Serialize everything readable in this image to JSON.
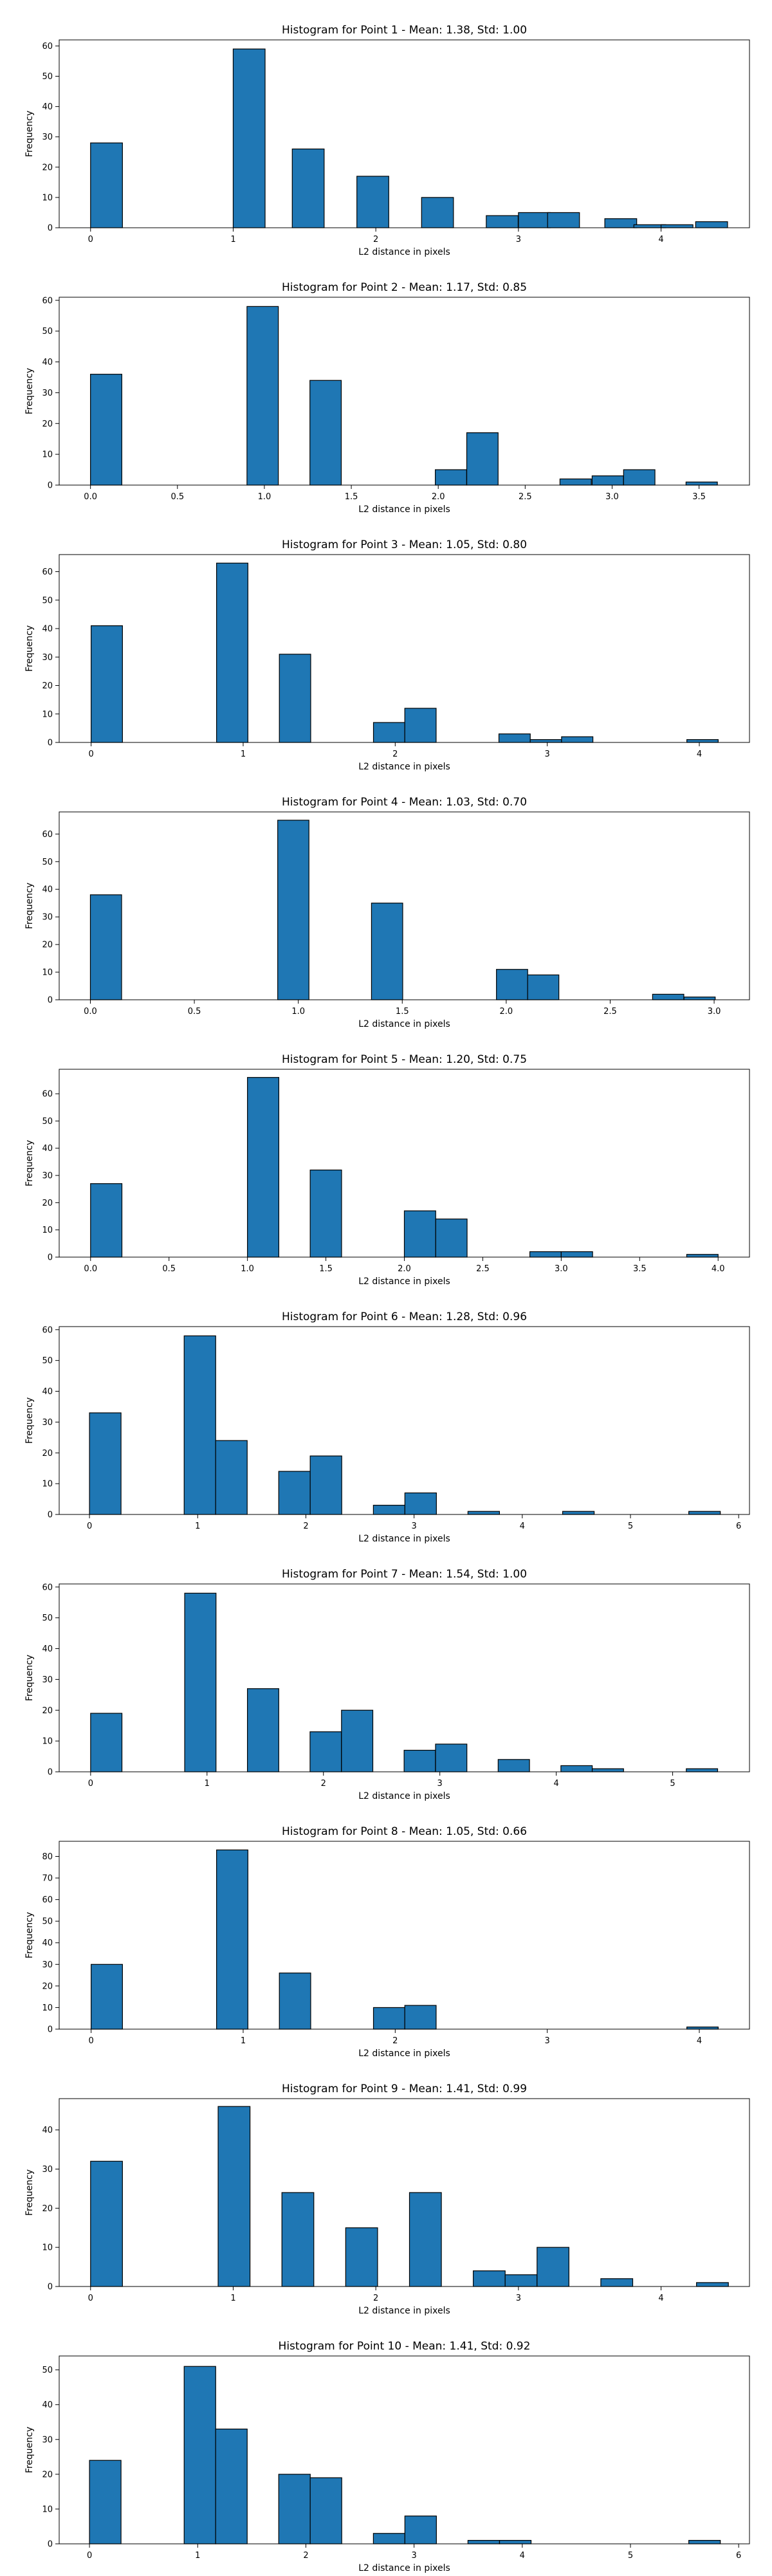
{
  "figure": {
    "bar_color": "#1f77b4",
    "edge_color": "#000000",
    "xlabel": "L2 distance in pixels",
    "ylabel": "Frequency"
  },
  "chart_data": [
    {
      "type": "bar",
      "title": "Histogram for Point 1 - Mean: 1.38, Std: 1.00",
      "xlabel": "L2 distance in pixels",
      "ylabel": "Frequency",
      "xlim": [
        -0.22,
        4.62
      ],
      "ylim": [
        0,
        62
      ],
      "xticks": [
        0,
        1,
        2,
        3,
        4
      ],
      "xtick_labels": [
        "0",
        "1",
        "2",
        "3",
        "4"
      ],
      "yticks": [
        0,
        10,
        20,
        30,
        40,
        50,
        60
      ],
      "bin_width": 0.2236,
      "bins": [
        [
          0.0,
          28
        ],
        [
          1.0,
          59
        ],
        [
          1.4142,
          26
        ],
        [
          1.8672,
          17
        ],
        [
          2.3208,
          10
        ],
        [
          2.7744,
          4
        ],
        [
          3.0,
          5
        ],
        [
          3.2044,
          5
        ],
        [
          3.6056,
          3
        ],
        [
          3.8094,
          1
        ],
        [
          4.0,
          1
        ],
        [
          4.2426,
          2
        ]
      ]
    },
    {
      "type": "bar",
      "title": "Histogram for Point 2 - Mean: 1.17, Std: 0.85",
      "xlabel": "L2 distance in pixels",
      "ylabel": "Frequency",
      "xlim": [
        -0.18,
        3.79
      ],
      "ylim": [
        0,
        61
      ],
      "xticks": [
        0.0,
        0.5,
        1.0,
        1.5,
        2.0,
        2.5,
        3.0,
        3.5
      ],
      "xtick_labels": [
        "0.0",
        "0.5",
        "1.0",
        "1.5",
        "2.0",
        "2.5",
        "3.0",
        "3.5"
      ],
      "yticks": [
        0,
        10,
        20,
        30,
        40,
        50,
        60
      ],
      "bin_width": 0.1803,
      "bins": [
        [
          0.0,
          36
        ],
        [
          0.9,
          58
        ],
        [
          1.262,
          34
        ],
        [
          1.983,
          5
        ],
        [
          2.164,
          17
        ],
        [
          2.7,
          2
        ],
        [
          2.885,
          3
        ],
        [
          3.066,
          5
        ],
        [
          3.425,
          1
        ]
      ]
    },
    {
      "type": "bar",
      "title": "Histogram for Point 3 - Mean: 1.05, Std: 0.80",
      "xlabel": "L2 distance in pixels",
      "ylabel": "Frequency",
      "xlim": [
        -0.21,
        4.33
      ],
      "ylim": [
        0,
        66
      ],
      "xticks": [
        0,
        1,
        2,
        3,
        4
      ],
      "xtick_labels": [
        "0",
        "1",
        "2",
        "3",
        "4"
      ],
      "yticks": [
        0,
        10,
        20,
        30,
        40,
        50,
        60
      ],
      "bin_width": 0.2062,
      "bins": [
        [
          0.0,
          41
        ],
        [
          0.825,
          63
        ],
        [
          1.238,
          31
        ],
        [
          1.857,
          7
        ],
        [
          2.063,
          12
        ],
        [
          2.682,
          3
        ],
        [
          2.888,
          1
        ],
        [
          3.094,
          2
        ],
        [
          3.918,
          1
        ]
      ]
    },
    {
      "type": "bar",
      "title": "Histogram for Point 4 - Mean: 1.03, Std: 0.70",
      "xlabel": "L2 distance in pixels",
      "ylabel": "Frequency",
      "xlim": [
        -0.15,
        3.17
      ],
      "ylim": [
        0,
        68
      ],
      "xticks": [
        0.0,
        0.5,
        1.0,
        1.5,
        2.0,
        2.5,
        3.0
      ],
      "xtick_labels": [
        "0.0",
        "0.5",
        "1.0",
        "1.5",
        "2.0",
        "2.5",
        "3.0"
      ],
      "yticks": [
        0,
        10,
        20,
        30,
        40,
        50,
        60
      ],
      "bin_width": 0.1502,
      "bins": [
        [
          0.0,
          38
        ],
        [
          0.901,
          65
        ],
        [
          1.352,
          35
        ],
        [
          1.953,
          11
        ],
        [
          2.103,
          9
        ],
        [
          2.704,
          2
        ],
        [
          2.855,
          1
        ]
      ]
    },
    {
      "type": "bar",
      "title": "Histogram for Point 5 - Mean: 1.20, Std: 0.75",
      "xlabel": "L2 distance in pixels",
      "ylabel": "Frequency",
      "xlim": [
        -0.2,
        4.2
      ],
      "ylim": [
        0,
        69
      ],
      "xticks": [
        0.0,
        0.5,
        1.0,
        1.5,
        2.0,
        2.5,
        3.0,
        3.5,
        4.0
      ],
      "xtick_labels": [
        "0.0",
        "0.5",
        "1.0",
        "1.5",
        "2.0",
        "2.5",
        "3.0",
        "3.5",
        "4.0"
      ],
      "yticks": [
        0,
        10,
        20,
        30,
        40,
        50,
        60
      ],
      "bin_width": 0.2,
      "bins": [
        [
          0.0,
          27
        ],
        [
          1.0,
          66
        ],
        [
          1.4,
          32
        ],
        [
          2.0,
          17
        ],
        [
          2.2,
          14
        ],
        [
          2.8,
          2
        ],
        [
          3.0,
          2
        ],
        [
          3.8,
          1
        ]
      ]
    },
    {
      "type": "bar",
      "title": "Histogram for Point 6 - Mean: 1.28, Std: 0.96",
      "xlabel": "L2 distance in pixels",
      "ylabel": "Frequency",
      "xlim": [
        -0.28,
        6.1
      ],
      "ylim": [
        0,
        61
      ],
      "xticks": [
        0,
        1,
        2,
        3,
        4,
        5,
        6
      ],
      "xtick_labels": [
        "0",
        "1",
        "2",
        "3",
        "4",
        "5",
        "6"
      ],
      "yticks": [
        0,
        10,
        20,
        30,
        40,
        50,
        60
      ],
      "bin_width": 0.2915,
      "bins": [
        [
          0.0,
          33
        ],
        [
          0.875,
          58
        ],
        [
          1.166,
          24
        ],
        [
          1.749,
          14
        ],
        [
          2.04,
          19
        ],
        [
          2.624,
          3
        ],
        [
          2.915,
          7
        ],
        [
          3.498,
          1
        ],
        [
          4.373,
          1
        ],
        [
          5.539,
          1
        ]
      ]
    },
    {
      "type": "bar",
      "title": "Histogram for Point 7 - Mean: 1.54, Std: 1.00",
      "xlabel": "L2 distance in pixels",
      "ylabel": "Frequency",
      "xlim": [
        -0.27,
        5.66
      ],
      "ylim": [
        0,
        61
      ],
      "xticks": [
        0,
        1,
        2,
        3,
        4,
        5
      ],
      "xtick_labels": [
        "0",
        "1",
        "2",
        "3",
        "4",
        "5"
      ],
      "yticks": [
        0,
        10,
        20,
        30,
        40,
        50,
        60
      ],
      "bin_width": 0.2693,
      "bins": [
        [
          0.0,
          19
        ],
        [
          0.808,
          58
        ],
        [
          1.347,
          27
        ],
        [
          1.885,
          13
        ],
        [
          2.155,
          20
        ],
        [
          2.693,
          7
        ],
        [
          2.963,
          9
        ],
        [
          3.501,
          4
        ],
        [
          4.04,
          2
        ],
        [
          4.309,
          1
        ],
        [
          5.117,
          1
        ]
      ]
    },
    {
      "type": "bar",
      "title": "Histogram for Point 8 - Mean: 1.05, Std: 0.66",
      "xlabel": "L2 distance in pixels",
      "ylabel": "Frequency",
      "xlim": [
        -0.21,
        4.33
      ],
      "ylim": [
        0,
        87
      ],
      "xticks": [
        0,
        1,
        2,
        3,
        4
      ],
      "xtick_labels": [
        "0",
        "1",
        "2",
        "3",
        "4"
      ],
      "yticks": [
        0,
        10,
        20,
        30,
        40,
        50,
        60,
        70,
        80
      ],
      "bin_width": 0.2062,
      "bins": [
        [
          0.0,
          30
        ],
        [
          0.825,
          83
        ],
        [
          1.238,
          26
        ],
        [
          1.857,
          10
        ],
        [
          2.063,
          11
        ],
        [
          3.918,
          1
        ]
      ]
    },
    {
      "type": "bar",
      "title": "Histogram for Point 9 - Mean: 1.41, Std: 0.99",
      "xlabel": "L2 distance in pixels",
      "ylabel": "Frequency",
      "xlim": [
        -0.22,
        4.62
      ],
      "ylim": [
        0,
        48
      ],
      "xticks": [
        0,
        1,
        2,
        3,
        4
      ],
      "xtick_labels": [
        "0",
        "1",
        "2",
        "3",
        "4"
      ],
      "yticks": [
        0,
        10,
        20,
        30,
        40
      ],
      "bin_width": 0.2236,
      "bins": [
        [
          0.0,
          32
        ],
        [
          0.8944,
          46
        ],
        [
          1.3416,
          24
        ],
        [
          1.7888,
          15
        ],
        [
          2.2361,
          24
        ],
        [
          2.6833,
          4
        ],
        [
          2.9069,
          3
        ],
        [
          3.1305,
          10
        ],
        [
          3.5777,
          2
        ],
        [
          4.2485,
          1
        ]
      ]
    },
    {
      "type": "bar",
      "title": "Histogram for Point 10 - Mean: 1.41, Std: 0.92",
      "xlabel": "L2 distance in pixels",
      "ylabel": "Frequency",
      "xlim": [
        -0.28,
        6.1
      ],
      "ylim": [
        0,
        54
      ],
      "xticks": [
        0,
        1,
        2,
        3,
        4,
        5,
        6
      ],
      "xtick_labels": [
        "0",
        "1",
        "2",
        "3",
        "4",
        "5",
        "6"
      ],
      "yticks": [
        0,
        10,
        20,
        30,
        40,
        50
      ],
      "bin_width": 0.2915,
      "bins": [
        [
          0.0,
          24
        ],
        [
          0.875,
          51
        ],
        [
          1.166,
          33
        ],
        [
          1.749,
          20
        ],
        [
          2.04,
          19
        ],
        [
          2.624,
          3
        ],
        [
          2.915,
          8
        ],
        [
          3.498,
          1
        ],
        [
          3.79,
          1
        ],
        [
          5.539,
          1
        ]
      ]
    }
  ]
}
